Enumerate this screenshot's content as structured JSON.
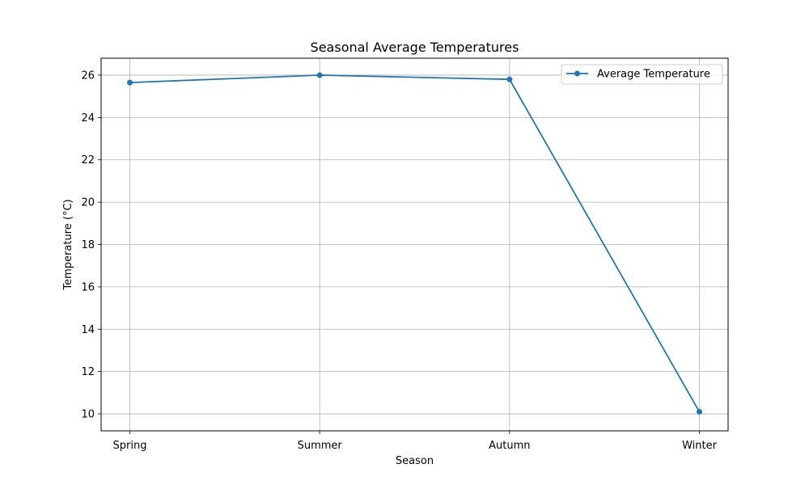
{
  "chart_data": {
    "type": "line",
    "title": "Seasonal Average Temperatures",
    "xlabel": "Season",
    "ylabel": "Temperature (°C)",
    "categories": [
      "Spring",
      "Summer",
      "Autumn",
      "Winter"
    ],
    "series": [
      {
        "name": "Average Temperature",
        "values": [
          25.65,
          26.0,
          25.8,
          10.1
        ],
        "color": "#1f77b4",
        "marker": "circle"
      }
    ],
    "ylim": [
      9.2,
      26.8
    ],
    "yticks": [
      10,
      12,
      14,
      16,
      18,
      20,
      22,
      24,
      26
    ],
    "grid": true,
    "legend_position": "upper right"
  }
}
